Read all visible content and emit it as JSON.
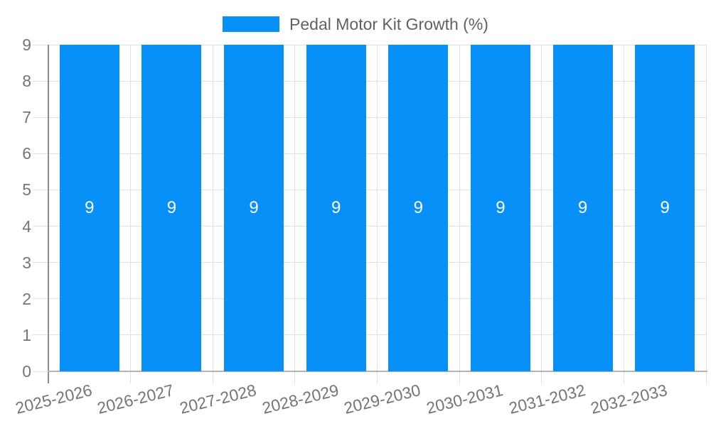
{
  "chart_data": {
    "type": "bar",
    "title": "Pedal Motor Kit Growth (%)",
    "categories": [
      "2025-2026",
      "2026-2027",
      "2027-2028",
      "2028-2029",
      "2029-2030",
      "2030-2031",
      "2031-2032",
      "2032-2033"
    ],
    "values": [
      9,
      9,
      9,
      9,
      9,
      9,
      9,
      9
    ],
    "value_labels": [
      "9",
      "9",
      "9",
      "9",
      "9",
      "9",
      "9",
      "9"
    ],
    "xlabel": "",
    "ylabel": "",
    "ylim": [
      0,
      9
    ],
    "yticks": [
      "0",
      "1",
      "2",
      "3",
      "4",
      "5",
      "6",
      "7",
      "8",
      "9"
    ],
    "grid": true,
    "legend_position": "top"
  },
  "colors": {
    "bar": "#0690f8",
    "background": "#ffffff",
    "grid_line": "#e0e0e0",
    "axis_line": "#8c8c8c",
    "baseline": "#b3b3b3",
    "tick_text": "#757575",
    "legend_text": "#616161",
    "value_label_text": "#ffffff"
  }
}
